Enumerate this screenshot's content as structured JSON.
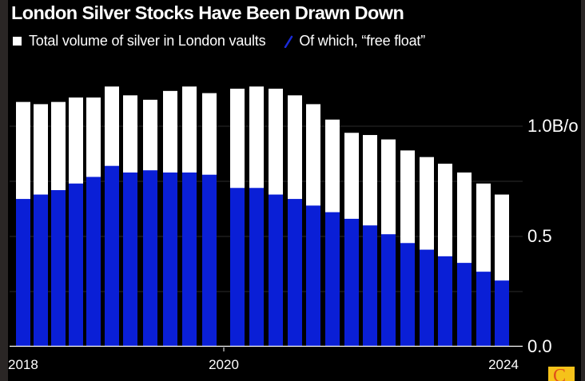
{
  "chart_data": {
    "type": "bar",
    "title": "London Silver Stocks Have Been Drawn Down",
    "legend": [
      {
        "name": "Total volume of silver in London vaults",
        "color": "#ffffff",
        "marker": "square"
      },
      {
        "name": "Of which, “free float”",
        "color": "#0a1fd6",
        "marker": "slash"
      }
    ],
    "legend_position": "top-left",
    "xlabel": "",
    "ylabel": "",
    "x_tick_labels": [
      {
        "label": "2018",
        "at_bar": 0,
        "align": "left"
      },
      {
        "label": "2020",
        "at_gap": true,
        "align": "center"
      },
      {
        "label": "2024",
        "at_bar": 25,
        "align": "center"
      }
    ],
    "y_axis": {
      "position": "right",
      "ylim": [
        0,
        1.2
      ],
      "ticks": [
        {
          "value": 0.0,
          "label": "0.0"
        },
        {
          "value": 0.5,
          "label": "0.5"
        },
        {
          "value": 1.0,
          "label": "1.0B/o"
        }
      ],
      "gridlines": [
        0.25,
        0.5,
        0.75,
        1.0
      ],
      "grid": true
    },
    "gap_after_index": 10,
    "series": [
      {
        "name": "Total volume of silver in London vaults",
        "color": "#ffffff",
        "values": [
          1.11,
          1.1,
          1.11,
          1.13,
          1.13,
          1.18,
          1.14,
          1.12,
          1.16,
          1.18,
          1.15,
          1.17,
          1.18,
          1.17,
          1.14,
          1.1,
          1.03,
          0.97,
          0.96,
          0.94,
          0.89,
          0.86,
          0.83,
          0.79,
          0.74,
          0.69
        ]
      },
      {
        "name": "Of which, free float",
        "color": "#0a1fd6",
        "values": [
          0.67,
          0.69,
          0.71,
          0.74,
          0.77,
          0.82,
          0.79,
          0.8,
          0.79,
          0.79,
          0.78,
          0.72,
          0.72,
          0.69,
          0.67,
          0.64,
          0.61,
          0.58,
          0.55,
          0.51,
          0.47,
          0.44,
          0.41,
          0.38,
          0.34,
          0.3
        ]
      }
    ]
  },
  "logo": {
    "glyph": "C",
    "bg_color": "#f5c21a",
    "fg_color": "#e0501a"
  }
}
